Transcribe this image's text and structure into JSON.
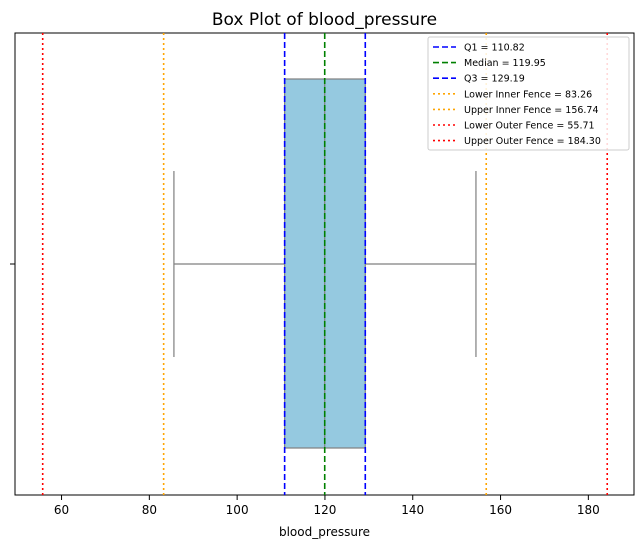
{
  "chart_data": {
    "type": "box",
    "title": "Box Plot of blood_pressure",
    "xlabel": "blood_pressure",
    "ylabel": "",
    "xlim": [
      49.4,
      190.4
    ],
    "x_ticks": [
      60,
      80,
      100,
      120,
      140,
      160,
      180
    ],
    "grid": false,
    "legend_position": "top-right",
    "box": {
      "whisker_low": 85.6,
      "q1": 110.82,
      "median": 119.95,
      "q3": 129.19,
      "whisker_high": 154.4,
      "fill_color": "#95c9e0",
      "line_color": "#7f7f7f"
    },
    "reference_lines": [
      {
        "label": "Q1 = 110.82",
        "value": 110.82,
        "color": "#0000ff",
        "style": "dashed"
      },
      {
        "label": "Median = 119.95",
        "value": 119.95,
        "color": "#008000",
        "style": "dashed"
      },
      {
        "label": "Q3 = 129.19",
        "value": 129.19,
        "color": "#0000ff",
        "style": "dashed"
      },
      {
        "label": "Lower Inner Fence = 83.26",
        "value": 83.26,
        "color": "#ffa500",
        "style": "dotted"
      },
      {
        "label": "Upper Inner Fence = 156.74",
        "value": 156.74,
        "color": "#ffa500",
        "style": "dotted"
      },
      {
        "label": "Lower Outer Fence = 55.71",
        "value": 55.71,
        "color": "#ff0000",
        "style": "dotted"
      },
      {
        "label": "Upper Outer Fence = 184.30",
        "value": 184.3,
        "color": "#ff0000",
        "style": "dotted"
      }
    ]
  }
}
